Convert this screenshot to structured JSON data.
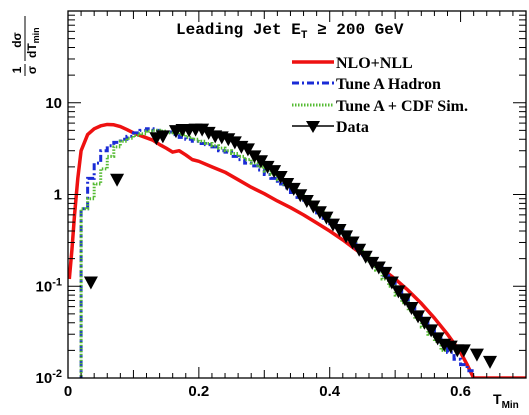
{
  "chart_data": {
    "type": "line",
    "title": "",
    "annotation": {
      "prefix": "Leading Jet E",
      "sub": "T",
      "suffix": " ≥ 200 GeV"
    },
    "xlabel": {
      "main": "T",
      "sub": "Min"
    },
    "ylabel": {
      "num": "1",
      "den": "σ",
      "dnum": "dσ",
      "dden_main": "dT",
      "dden_sub": "min"
    },
    "xlim": [
      0,
      0.7
    ],
    "ylim": [
      0.01,
      100
    ],
    "log_y": true,
    "grid": false,
    "legend_position": "top-right",
    "x_ticks": [
      {
        "value": 0,
        "label": "0"
      },
      {
        "value": 0.2,
        "label": "0.2"
      },
      {
        "value": 0.4,
        "label": "0.4"
      },
      {
        "value": 0.6,
        "label": "0.6"
      }
    ],
    "y_ticks": [
      {
        "value": 0.01,
        "base": "10",
        "exp": "-2"
      },
      {
        "value": 0.1,
        "base": "10",
        "exp": "-1"
      },
      {
        "value": 1,
        "base": "1",
        "exp": ""
      },
      {
        "value": 10,
        "base": "10",
        "exp": ""
      }
    ],
    "series": [
      {
        "name": "NLO+NLL",
        "style": "smooth",
        "color": "#ee1111",
        "x": [
          0.002,
          0.006,
          0.01,
          0.015,
          0.02,
          0.03,
          0.04,
          0.05,
          0.06,
          0.07,
          0.08,
          0.09,
          0.1,
          0.11,
          0.12,
          0.13,
          0.14,
          0.15,
          0.16,
          0.17,
          0.18,
          0.19,
          0.2,
          0.22,
          0.24,
          0.26,
          0.28,
          0.3,
          0.32,
          0.34,
          0.36,
          0.38,
          0.4,
          0.42,
          0.44,
          0.46,
          0.48,
          0.5,
          0.52,
          0.54,
          0.56,
          0.58,
          0.6,
          0.61,
          0.62,
          0.7
        ],
        "y": [
          0.12,
          0.25,
          0.6,
          1.5,
          3.0,
          4.5,
          5.2,
          5.6,
          5.8,
          5.75,
          5.5,
          5.1,
          4.7,
          4.4,
          4.15,
          3.9,
          3.5,
          3.2,
          2.9,
          3.0,
          2.7,
          2.4,
          2.3,
          2.0,
          1.75,
          1.45,
          1.2,
          1.02,
          0.85,
          0.72,
          0.6,
          0.49,
          0.4,
          0.32,
          0.25,
          0.2,
          0.155,
          0.12,
          0.09,
          0.065,
          0.045,
          0.03,
          0.019,
          0.014,
          0.01,
          0.01
        ]
      },
      {
        "name": "Tune A Hadron",
        "style": "step",
        "color": "#1a2bd6",
        "dash": "7 3 2 3",
        "edges": [
          0.02,
          0.03,
          0.04,
          0.05,
          0.06,
          0.07,
          0.08,
          0.09,
          0.1,
          0.11,
          0.12,
          0.13,
          0.14,
          0.15,
          0.16,
          0.17,
          0.18,
          0.19,
          0.2,
          0.21,
          0.22,
          0.23,
          0.24,
          0.25,
          0.26,
          0.27,
          0.28,
          0.29,
          0.3,
          0.31,
          0.32,
          0.33,
          0.34,
          0.35,
          0.36,
          0.37,
          0.38,
          0.39,
          0.4,
          0.41,
          0.42,
          0.43,
          0.44,
          0.45,
          0.46,
          0.47,
          0.48,
          0.49,
          0.5,
          0.51,
          0.52,
          0.53,
          0.54,
          0.55,
          0.56,
          0.57,
          0.58,
          0.59,
          0.6,
          0.61,
          0.62
        ],
        "values": [
          0.7,
          1.5,
          2.2,
          3.0,
          3.4,
          3.7,
          4.0,
          4.3,
          4.7,
          5.0,
          5.2,
          5.0,
          4.6,
          4.8,
          4.5,
          4.2,
          4.0,
          3.8,
          3.6,
          3.5,
          3.3,
          3.0,
          2.9,
          2.6,
          2.4,
          2.2,
          2.05,
          1.85,
          1.65,
          1.5,
          1.3,
          1.18,
          1.05,
          0.93,
          0.82,
          0.72,
          0.63,
          0.55,
          0.48,
          0.42,
          0.36,
          0.31,
          0.26,
          0.22,
          0.19,
          0.16,
          0.13,
          0.11,
          0.09,
          0.075,
          0.062,
          0.05,
          0.041,
          0.034,
          0.028,
          0.023,
          0.019,
          0.016,
          0.014,
          0.012
        ]
      },
      {
        "name": "Tune A + CDF Sim.",
        "style": "step",
        "color": "#55bb33",
        "dash": "1.5 1.5",
        "edges": [
          0.02,
          0.03,
          0.04,
          0.05,
          0.06,
          0.07,
          0.08,
          0.09,
          0.1,
          0.11,
          0.12,
          0.13,
          0.14,
          0.15,
          0.16,
          0.17,
          0.18,
          0.19,
          0.2,
          0.21,
          0.22,
          0.23,
          0.24,
          0.25,
          0.26,
          0.27,
          0.28,
          0.29,
          0.3,
          0.31,
          0.32,
          0.33,
          0.34,
          0.35,
          0.36,
          0.37,
          0.38,
          0.39,
          0.4,
          0.41,
          0.42,
          0.43,
          0.44,
          0.45,
          0.46,
          0.47,
          0.48,
          0.49,
          0.5,
          0.51,
          0.52,
          0.53,
          0.54,
          0.55,
          0.56,
          0.57,
          0.58
        ],
        "values": [
          0.7,
          0.9,
          1.3,
          1.9,
          2.6,
          3.3,
          3.8,
          4.1,
          4.4,
          4.6,
          4.9,
          5.0,
          4.9,
          4.7,
          4.8,
          4.5,
          4.2,
          4.0,
          3.8,
          3.6,
          3.4,
          3.2,
          3.0,
          2.8,
          2.6,
          2.4,
          2.2,
          2.0,
          1.8,
          1.65,
          1.45,
          1.3,
          1.15,
          1.02,
          0.9,
          0.8,
          0.7,
          0.6,
          0.52,
          0.45,
          0.38,
          0.32,
          0.27,
          0.22,
          0.18,
          0.15,
          0.12,
          0.1,
          0.08,
          0.066,
          0.054,
          0.044,
          0.036,
          0.03,
          0.025,
          0.02
        ]
      },
      {
        "name": "Data",
        "style": "markers",
        "color": "#000000",
        "x": [
          0.035,
          0.075,
          0.135,
          0.145,
          0.165,
          0.175,
          0.185,
          0.195,
          0.205,
          0.215,
          0.225,
          0.235,
          0.245,
          0.255,
          0.265,
          0.275,
          0.285,
          0.295,
          0.305,
          0.315,
          0.325,
          0.335,
          0.345,
          0.355,
          0.365,
          0.375,
          0.385,
          0.395,
          0.405,
          0.415,
          0.425,
          0.435,
          0.445,
          0.455,
          0.465,
          0.475,
          0.485,
          0.495,
          0.505,
          0.515,
          0.525,
          0.535,
          0.545,
          0.555,
          0.565,
          0.575,
          0.585,
          0.595,
          0.605,
          0.625,
          0.645
        ],
        "y": [
          0.11,
          1.45,
          4.1,
          4.3,
          4.9,
          5.05,
          5.0,
          5.1,
          5.1,
          4.7,
          4.3,
          4.2,
          4.0,
          3.7,
          3.3,
          3.1,
          2.6,
          2.3,
          2.0,
          1.8,
          1.55,
          1.3,
          1.15,
          0.98,
          0.85,
          0.74,
          0.64,
          0.56,
          0.47,
          0.41,
          0.35,
          0.3,
          0.25,
          0.21,
          0.18,
          0.16,
          0.14,
          0.11,
          0.088,
          0.072,
          0.058,
          0.047,
          0.04,
          0.033,
          0.027,
          0.023,
          0.022,
          0.02,
          0.02,
          0.018,
          0.015
        ]
      }
    ]
  }
}
